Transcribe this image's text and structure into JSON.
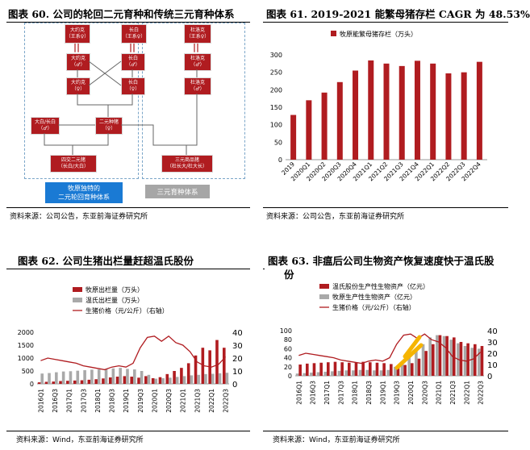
{
  "panel60": {
    "title": "图表 60. 公司的轮回二元育种和传统三元育种体系",
    "source": "资料来源：公司公告，东亚前海证券研究所",
    "boxes": {
      "b1": [
        "大约克",
        "（王系♀）"
      ],
      "b2": [
        "长白",
        "（王系♀）"
      ],
      "b3": [
        "大约克",
        "（♂）"
      ],
      "b4": [
        "长白",
        "（♂）"
      ],
      "b5": [
        "大约克",
        "（♀）"
      ],
      "b6": [
        "长白",
        "（♀）"
      ],
      "b7": [
        "大白/长白",
        "（♂）"
      ],
      "b8": [
        "二元种猪",
        "（♀）"
      ],
      "b9": [
        "四交二元猪",
        "（长白/大白）"
      ],
      "c1": [
        "杜洛克",
        "（王系♀）"
      ],
      "c2": [
        "杜洛克",
        "（♂）"
      ],
      "c3": [
        "杜洛克",
        "（♂）"
      ],
      "c4": [
        "三元商品猪",
        "（杜长大/杜大长）"
      ]
    },
    "eq_sign": "||",
    "blue_label": [
      "牧原独特的",
      "二元轮回育种体系"
    ],
    "gray_label": "三元育种体系"
  },
  "panel61": {
    "title": "图表 61. 2019-2021 能繁母猪存栏 CAGR 为 48.53%",
    "source": "资料来源：公司公告，东亚前海证券研究所",
    "chart_data": {
      "type": "bar",
      "categories": [
        "2019",
        "2020Q1",
        "2020Q2",
        "2020Q3",
        "2020Q4",
        "2021Q1",
        "2021Q2",
        "2021Q3",
        "2021Q4",
        "2022Q1",
        "2022Q2",
        "2022Q3",
        "2022Q4"
      ],
      "series": [
        {
          "name": "牧原能繁母猪存栏（万头）",
          "values": [
            128,
            170,
            192,
            222,
            255,
            284,
            275,
            268,
            283,
            275,
            247,
            250,
            280
          ]
        }
      ],
      "ylim": [
        0,
        300
      ],
      "yticks": [
        0,
        50,
        100,
        150,
        200,
        250,
        300
      ],
      "legend": "top"
    }
  },
  "panel62": {
    "title": "图表 62. 公司生猪出栏量赶超温氏股份",
    "source": "资料来源：Wind，东亚前海证券研究所",
    "chart_data": {
      "type": "bar",
      "categories": [
        "2016Q1",
        "2016Q2",
        "2016Q3",
        "2016Q4",
        "2017Q1",
        "2017Q2",
        "2017Q3",
        "2017Q4",
        "2018Q1",
        "2018Q2",
        "2018Q3",
        "2018Q4",
        "2019Q1",
        "2019Q2",
        "2019Q3",
        "2019Q4",
        "2020Q1",
        "2020Q2",
        "2020Q3",
        "2020Q4",
        "2021Q1",
        "2021Q2",
        "2021Q3",
        "2021Q4",
        "2022Q1",
        "2022Q2",
        "2022Q3"
      ],
      "x_tick_labels": [
        "2016Q1",
        "2016Q3",
        "2017Q1",
        "2017Q3",
        "2018Q1",
        "2018Q3",
        "2019Q1",
        "2019Q3",
        "2020Q1",
        "2020Q3",
        "2021Q1",
        "2021Q3",
        "2022Q1",
        "2022Q3"
      ],
      "series": [
        {
          "name": "牧原出栏量（万头）",
          "axis": "left",
          "values": [
            60,
            80,
            90,
            110,
            120,
            130,
            140,
            160,
            180,
            210,
            250,
            280,
            300,
            280,
            240,
            300,
            220,
            260,
            380,
            500,
            620,
            800,
            1100,
            1400,
            1300,
            1700,
            1400
          ]
        },
        {
          "name": "温氏出栏量（万头）",
          "axis": "left",
          "values": [
            400,
            420,
            450,
            480,
            490,
            510,
            530,
            550,
            560,
            580,
            600,
            620,
            580,
            560,
            500,
            350,
            200,
            220,
            240,
            270,
            300,
            330,
            350,
            380,
            390,
            410,
            430
          ]
        },
        {
          "name": "生猪价格（元/公斤）（右轴）",
          "axis": "right",
          "type": "line",
          "values": [
            18,
            20,
            19,
            18,
            17,
            16,
            14,
            13,
            12,
            11,
            13,
            14,
            13,
            16,
            28,
            36,
            37,
            33,
            37,
            32,
            30,
            25,
            17,
            14,
            13,
            15,
            21
          ]
        }
      ],
      "ylim_left": [
        0,
        2000
      ],
      "yticks_left": [
        0,
        500,
        1000,
        1500,
        2000
      ],
      "ylim_right": [
        0,
        40
      ],
      "yticks_right": [
        0,
        10,
        20,
        30,
        40
      ],
      "legend": "top-left"
    }
  },
  "panel63": {
    "title_line1": "图表 63. 非瘟后公司生物资产恢复速度快于温氏股",
    "title_line2": "份",
    "source": "资料来源：Wind，东亚前海证券研究所",
    "chart_data": {
      "type": "bar",
      "categories": [
        "2016Q1",
        "2016Q2",
        "2016Q3",
        "2016Q4",
        "2017Q1",
        "2017Q2",
        "2017Q3",
        "2017Q4",
        "2018Q1",
        "2018Q2",
        "2018Q3",
        "2018Q4",
        "2019Q1",
        "2019Q2",
        "2019Q3",
        "2019Q4",
        "2020Q1",
        "2020Q2",
        "2020Q3",
        "2020Q4",
        "2021Q1",
        "2021Q2",
        "2021Q3",
        "2021Q4",
        "2022Q1",
        "2022Q2",
        "2022Q3"
      ],
      "x_tick_labels": [
        "2016Q1",
        "2016Q3",
        "2017Q1",
        "2017Q3",
        "2018Q1",
        "2018Q3",
        "2019Q1",
        "2019Q3",
        "2020Q1",
        "2020Q3",
        "2021Q1",
        "2021Q3",
        "2022Q1",
        "2022Q3"
      ],
      "series": [
        {
          "name": "牧原生产性生物资产（亿元）",
          "axis": "left",
          "values": [
            5,
            6,
            7,
            8,
            9,
            10,
            11,
            12,
            12,
            13,
            13,
            12,
            12,
            13,
            20,
            28,
            40,
            55,
            70,
            85,
            90,
            88,
            80,
            72,
            66,
            62,
            60
          ]
        },
        {
          "name": "温氏股份生产性生物资产（亿元）",
          "axis": "left",
          "values": [
            25,
            27,
            28,
            29,
            30,
            31,
            30,
            29,
            30,
            31,
            30,
            29,
            28,
            26,
            22,
            24,
            28,
            38,
            55,
            70,
            90,
            88,
            85,
            75,
            72,
            70,
            66
          ]
        },
        {
          "name": "生猪价格（元/公斤）（右轴）",
          "axis": "right",
          "type": "line",
          "values": [
            18,
            20,
            19,
            18,
            17,
            16,
            14,
            13,
            12,
            11,
            13,
            14,
            13,
            16,
            28,
            36,
            37,
            33,
            37,
            32,
            30,
            25,
            17,
            14,
            13,
            15,
            21
          ]
        }
      ],
      "ylim_left": [
        0,
        100
      ],
      "yticks_left": [
        0,
        20,
        40,
        60,
        80,
        100
      ],
      "ylim_right": [
        0,
        40
      ],
      "yticks_right": [
        0,
        10,
        20,
        30,
        40
      ],
      "legend": "top"
    }
  }
}
